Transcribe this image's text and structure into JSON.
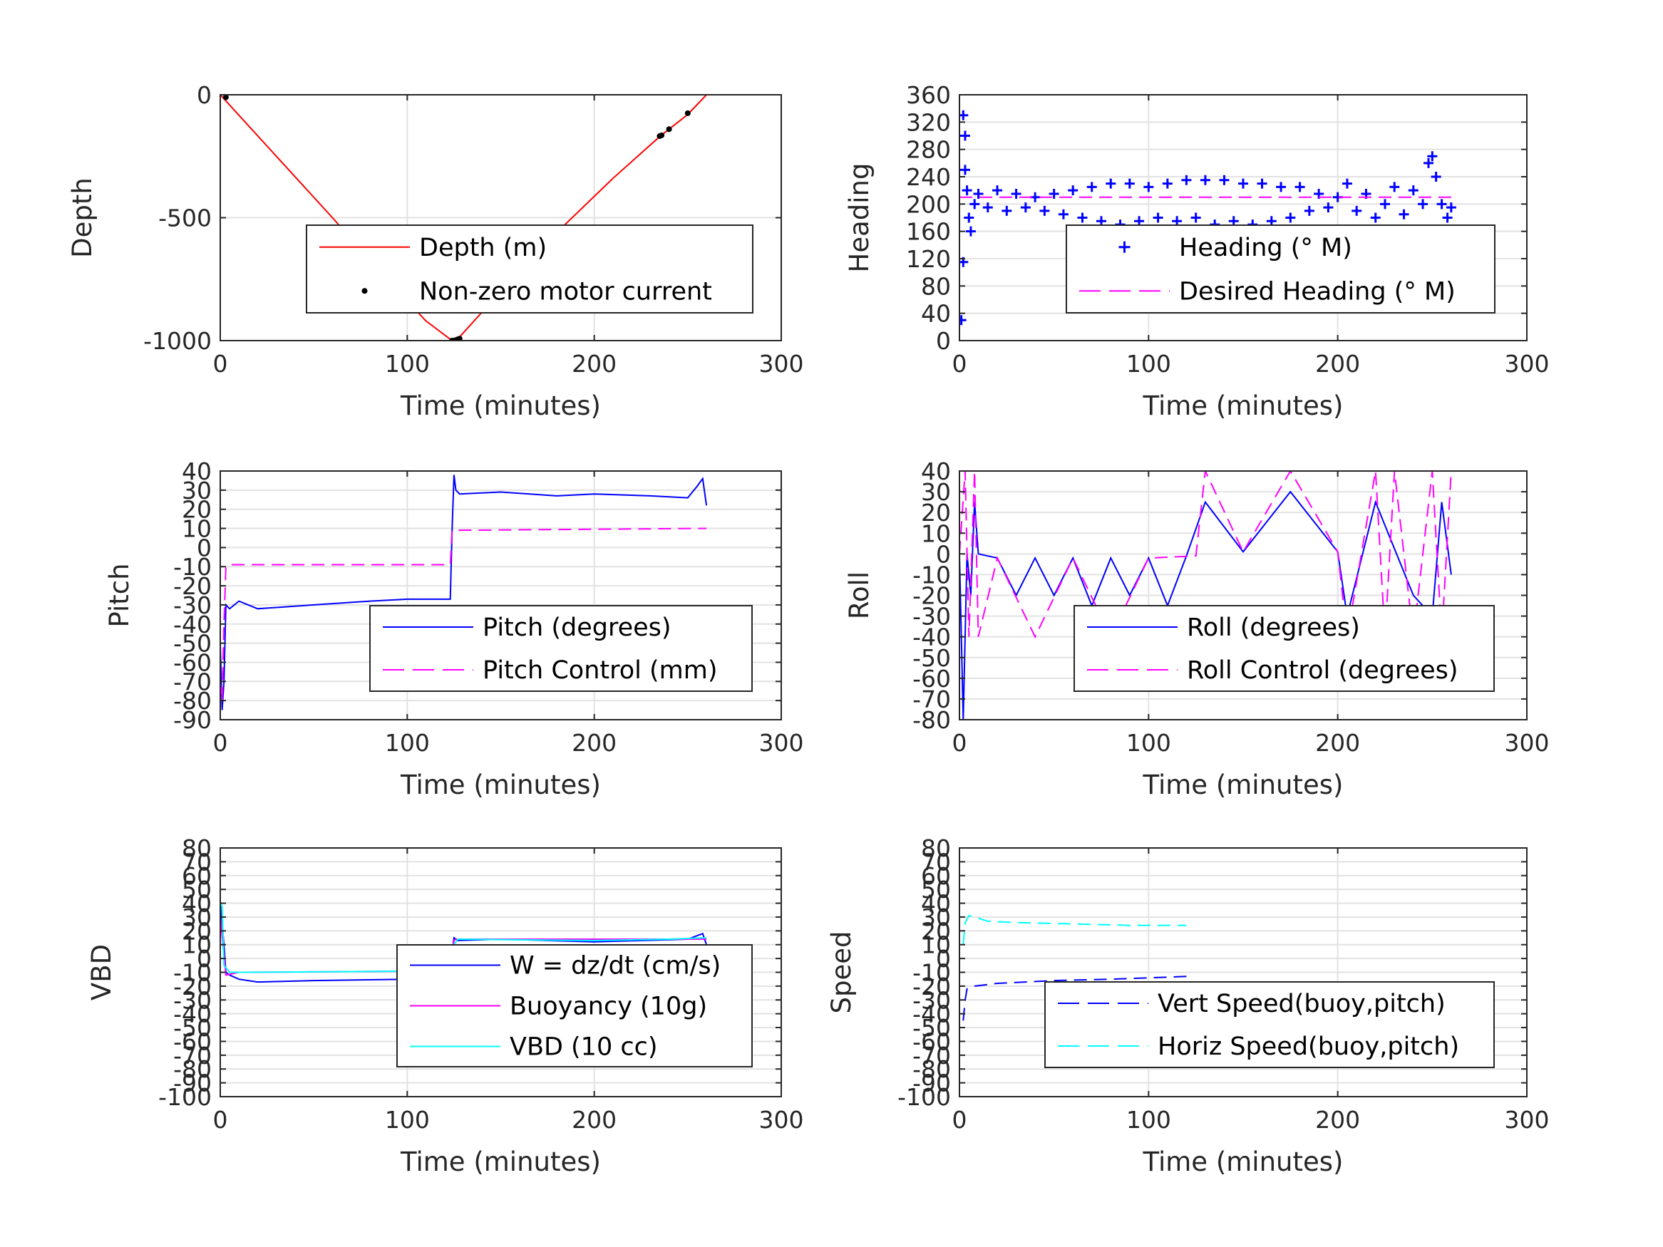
{
  "chart_data": [
    {
      "type": "line",
      "xlabel": "Time (minutes)",
      "ylabel": "Depth",
      "xlim": [
        0,
        300
      ],
      "ylim": [
        -1000,
        0
      ],
      "xticks": [
        0,
        100,
        200,
        300
      ],
      "yticks": [
        0,
        -500,
        -1000
      ],
      "grid": true,
      "legend_position": "center-right",
      "series": [
        {
          "name": "Depth (m)",
          "color": "#ff0000",
          "style": "solid",
          "x": [
            0,
            30,
            60,
            90,
            110,
            124,
            128,
            150,
            180,
            210,
            235,
            250,
            260
          ],
          "y": [
            0,
            -250,
            -500,
            -760,
            -920,
            -1000,
            -985,
            -800,
            -560,
            -340,
            -170,
            -80,
            0
          ]
        },
        {
          "name": "Non-zero motor current",
          "color": "#000000",
          "style": "dot",
          "x": [
            3,
            124,
            125,
            126,
            127,
            128,
            235,
            236,
            240,
            250
          ],
          "y": [
            -10,
            -1000,
            -1000,
            -998,
            -995,
            -992,
            -168,
            -165,
            -140,
            -75
          ]
        }
      ]
    },
    {
      "type": "scatter",
      "xlabel": "Time (minutes)",
      "ylabel": "Heading",
      "xlim": [
        0,
        300
      ],
      "ylim": [
        0,
        360
      ],
      "xticks": [
        0,
        100,
        200,
        300
      ],
      "yticks": [
        0,
        40,
        80,
        120,
        160,
        200,
        240,
        280,
        320,
        360
      ],
      "grid": true,
      "legend_position": "center-right",
      "series": [
        {
          "name": "Heading (° M)",
          "color": "#0000ff",
          "style": "plus",
          "x": [
            1,
            2,
            2,
            3,
            3,
            4,
            5,
            6,
            8,
            10,
            15,
            20,
            25,
            30,
            35,
            40,
            45,
            50,
            55,
            60,
            65,
            70,
            75,
            80,
            85,
            90,
            95,
            100,
            105,
            110,
            115,
            120,
            125,
            130,
            135,
            140,
            145,
            150,
            155,
            160,
            165,
            170,
            175,
            180,
            185,
            190,
            195,
            200,
            205,
            210,
            215,
            220,
            225,
            230,
            235,
            240,
            245,
            248,
            250,
            252,
            255,
            258,
            260
          ],
          "y": [
            30,
            115,
            330,
            300,
            250,
            220,
            180,
            160,
            200,
            215,
            195,
            220,
            190,
            215,
            195,
            210,
            190,
            215,
            185,
            220,
            180,
            225,
            175,
            230,
            170,
            230,
            175,
            225,
            180,
            230,
            175,
            235,
            180,
            235,
            170,
            235,
            175,
            230,
            170,
            230,
            175,
            225,
            180,
            225,
            190,
            215,
            195,
            210,
            230,
            190,
            215,
            180,
            200,
            225,
            185,
            220,
            200,
            260,
            270,
            240,
            200,
            180,
            195
          ]
        },
        {
          "name": "Desired Heading (° M)",
          "color": "#ff00ff",
          "style": "dash",
          "x": [
            0,
            260
          ],
          "y": [
            210,
            210
          ]
        }
      ]
    },
    {
      "type": "line",
      "xlabel": "Time (minutes)",
      "ylabel": "Pitch",
      "xlim": [
        0,
        300
      ],
      "ylim": [
        -90,
        40
      ],
      "xticks": [
        0,
        100,
        200,
        300
      ],
      "yticks": [
        40,
        30,
        20,
        10,
        0,
        -10,
        -20,
        -30,
        -40,
        -50,
        -60,
        -70,
        -80,
        -90
      ],
      "grid": true,
      "legend_position": "center-right",
      "series": [
        {
          "name": "Pitch (degrees)",
          "color": "#0000ff",
          "style": "solid",
          "x": [
            0,
            1,
            2,
            3,
            5,
            10,
            20,
            50,
            80,
            100,
            123,
            124,
            125,
            126,
            128,
            150,
            180,
            200,
            230,
            250,
            255,
            258,
            260
          ],
          "y": [
            -50,
            -85,
            -70,
            -30,
            -32,
            -28,
            -32,
            -30,
            -28,
            -27,
            -27,
            10,
            38,
            30,
            28,
            29,
            27,
            28,
            27,
            26,
            32,
            36,
            22
          ]
        },
        {
          "name": "Pitch Control (mm)",
          "color": "#ff00ff",
          "style": "dash",
          "x": [
            0,
            1,
            2,
            3,
            5,
            123,
            124,
            126,
            260
          ],
          "y": [
            -70,
            -80,
            -40,
            -10,
            -9,
            -9,
            9,
            9,
            10
          ]
        }
      ]
    },
    {
      "type": "line",
      "xlabel": "Time (minutes)",
      "ylabel": "Roll",
      "xlim": [
        0,
        300
      ],
      "ylim": [
        -80,
        40
      ],
      "xticks": [
        0,
        100,
        200,
        300
      ],
      "yticks": [
        40,
        30,
        20,
        10,
        0,
        -10,
        -20,
        -30,
        -40,
        -50,
        -60,
        -70,
        -80
      ],
      "grid": true,
      "legend_position": "center-right",
      "series": [
        {
          "name": "Roll (degrees)",
          "color": "#0000ff",
          "style": "solid",
          "x": [
            0,
            2,
            4,
            6,
            8,
            10,
            20,
            30,
            40,
            50,
            60,
            70,
            80,
            90,
            100,
            110,
            120,
            130,
            150,
            175,
            200,
            205,
            220,
            240,
            250,
            255,
            260
          ],
          "y": [
            0,
            -80,
            0,
            -20,
            25,
            0,
            -2,
            -20,
            -2,
            -20,
            -2,
            -25,
            -2,
            -20,
            -2,
            -25,
            -1,
            25,
            1,
            30,
            1,
            -30,
            25,
            -20,
            -30,
            25,
            -10
          ]
        },
        {
          "name": "Roll Control (degrees)",
          "color": "#ff00ff",
          "style": "dash",
          "x": [
            0,
            3,
            5,
            8,
            10,
            20,
            40,
            60,
            80,
            100,
            125,
            130,
            150,
            175,
            200,
            205,
            220,
            225,
            230,
            240,
            250,
            255,
            260
          ],
          "y": [
            0,
            40,
            -40,
            40,
            -40,
            -2,
            -40,
            -2,
            -40,
            -2,
            -1,
            40,
            1,
            40,
            1,
            -40,
            40,
            -40,
            40,
            -40,
            40,
            -40,
            40
          ]
        }
      ]
    },
    {
      "type": "line",
      "xlabel": "Time (minutes)",
      "ylabel": "VBD",
      "xlim": [
        0,
        300
      ],
      "ylim": [
        -100,
        80
      ],
      "xticks": [
        0,
        100,
        200,
        300
      ],
      "yticks": [
        80,
        70,
        60,
        50,
        40,
        30,
        20,
        10,
        0,
        -10,
        -20,
        -30,
        -40,
        -50,
        -60,
        -70,
        -80,
        -90,
        -100
      ],
      "grid": true,
      "legend_position": "center-right",
      "series": [
        {
          "name": "W = dz/dt (cm/s)",
          "color": "#0000ff",
          "style": "solid",
          "x": [
            0,
            2,
            3,
            5,
            10,
            20,
            50,
            100,
            123,
            124,
            125,
            127,
            150,
            200,
            250,
            258,
            260
          ],
          "y": [
            40,
            10,
            -10,
            -12,
            -15,
            -17,
            -16,
            -15,
            -15,
            5,
            15,
            13,
            14,
            12,
            14,
            18,
            10
          ]
        },
        {
          "name": "Buoyancy (10g)",
          "color": "#ff00ff",
          "style": "solid",
          "x": [
            0,
            3,
            10,
            123,
            124,
            125,
            126,
            260
          ],
          "y": [
            30,
            -12,
            -10,
            -9,
            5,
            13,
            14,
            14
          ]
        },
        {
          "name": "VBD (10 cc)",
          "color": "#00ffff",
          "style": "solid",
          "x": [
            0,
            1,
            2,
            5,
            10,
            120,
            123,
            125,
            127,
            200,
            240,
            260
          ],
          "y": [
            40,
            38,
            -5,
            -10,
            -10,
            -9,
            -8,
            10,
            14,
            13,
            14,
            15
          ]
        }
      ]
    },
    {
      "type": "line",
      "xlabel": "Time (minutes)",
      "ylabel": "Speed",
      "xlim": [
        0,
        300
      ],
      "ylim": [
        -100,
        80
      ],
      "xticks": [
        0,
        100,
        200,
        300
      ],
      "yticks": [
        80,
        70,
        60,
        50,
        40,
        30,
        20,
        10,
        0,
        -10,
        -20,
        -30,
        -40,
        -50,
        -60,
        -70,
        -80,
        -90,
        -100
      ],
      "grid": true,
      "legend_position": "center-right",
      "series": [
        {
          "name": "Vert Speed(buoy,pitch)",
          "color": "#0000ff",
          "style": "dash",
          "x": [
            2,
            3,
            4,
            8,
            20,
            50,
            80,
            100,
            120
          ],
          "y": [
            -45,
            -30,
            -22,
            -20,
            -18,
            -16,
            -15,
            -14,
            -13
          ]
        },
        {
          "name": "Horiz Speed(buoy,pitch)",
          "color": "#00ffff",
          "style": "dash",
          "x": [
            2,
            3,
            5,
            8,
            15,
            30,
            60,
            90,
            120
          ],
          "y": [
            10,
            26,
            31,
            30,
            27,
            26,
            25,
            24,
            24
          ]
        }
      ]
    }
  ]
}
